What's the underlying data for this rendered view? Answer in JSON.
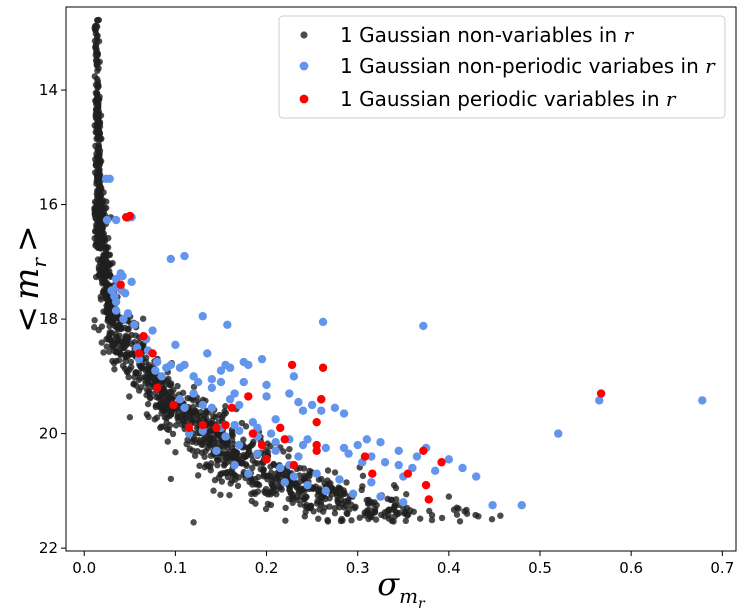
{
  "chart_data": {
    "type": "scatter",
    "xlabel": "σ",
    "xlabel_sub": "m",
    "xlabel_subsub": "r",
    "ylabel_parts": [
      "<",
      "m",
      "r",
      ">"
    ],
    "xlim": [
      -0.02,
      0.715
    ],
    "ylim": [
      22.05,
      12.55
    ],
    "y_inverted": true,
    "xticks": [
      0.0,
      0.1,
      0.2,
      0.3,
      0.4,
      0.5,
      0.6,
      0.7
    ],
    "xtick_labels": [
      "0.0",
      "0.1",
      "0.2",
      "0.3",
      "0.4",
      "0.5",
      "0.6",
      "0.7"
    ],
    "yticks": [
      14,
      16,
      18,
      20,
      22
    ],
    "ytick_labels": [
      "14",
      "16",
      "18",
      "20",
      "22"
    ],
    "grid": false,
    "legend_position": "top-right",
    "series": [
      {
        "name": "1 Gaussian non-variables in r",
        "name_text": "1 Gaussian non-variables in ",
        "name_italic": "r",
        "color": "#1f1f1f",
        "marker_alpha": 0.8,
        "marker_size": 3.2,
        "description": "dense locus ~1400 stars following <m_r> vs sigma relation",
        "locus": [
          [
            0.013,
            12.8
          ],
          [
            0.014,
            13.6
          ],
          [
            0.015,
            14.5
          ],
          [
            0.016,
            15.5
          ],
          [
            0.018,
            16.5
          ],
          [
            0.022,
            17.3
          ],
          [
            0.03,
            17.9
          ],
          [
            0.045,
            18.5
          ],
          [
            0.07,
            19.0
          ],
          [
            0.1,
            19.5
          ],
          [
            0.13,
            19.9
          ],
          [
            0.16,
            20.3
          ],
          [
            0.2,
            20.7
          ],
          [
            0.24,
            21.0
          ],
          [
            0.28,
            21.2
          ],
          [
            0.32,
            21.35
          ],
          [
            0.36,
            21.45
          ],
          [
            0.4,
            21.5
          ]
        ],
        "extra_points": [
          [
            0.12,
            21.55
          ],
          [
            0.42,
            21.4
          ],
          [
            0.4,
            21.1
          ],
          [
            0.35,
            21.3
          ],
          [
            0.34,
            20.9
          ]
        ]
      },
      {
        "name": "1 Gaussian non-periodic variabes in r",
        "name_text": "1 Gaussian non-periodic variabes in ",
        "name_italic": "r",
        "color": "#6495ed",
        "marker_size": 4.2,
        "points": [
          [
            0.024,
            15.55
          ],
          [
            0.028,
            15.55
          ],
          [
            0.025,
            16.27
          ],
          [
            0.035,
            16.27
          ],
          [
            0.048,
            16.23
          ],
          [
            0.052,
            16.22
          ],
          [
            0.095,
            16.95
          ],
          [
            0.11,
            16.9
          ],
          [
            0.04,
            17.2
          ],
          [
            0.042,
            17.25
          ],
          [
            0.035,
            17.3
          ],
          [
            0.052,
            17.35
          ],
          [
            0.035,
            17.45
          ],
          [
            0.041,
            17.5
          ],
          [
            0.03,
            17.5
          ],
          [
            0.045,
            17.55
          ],
          [
            0.033,
            17.6
          ],
          [
            0.035,
            17.7
          ],
          [
            0.048,
            17.9
          ],
          [
            0.055,
            18.1
          ],
          [
            0.035,
            17.85
          ],
          [
            0.043,
            18.0
          ],
          [
            0.13,
            17.95
          ],
          [
            0.157,
            18.1
          ],
          [
            0.262,
            18.05
          ],
          [
            0.372,
            18.12
          ],
          [
            0.075,
            18.2
          ],
          [
            0.068,
            18.35
          ],
          [
            0.1,
            18.45
          ],
          [
            0.058,
            18.5
          ],
          [
            0.07,
            18.55
          ],
          [
            0.06,
            18.7
          ],
          [
            0.08,
            18.75
          ],
          [
            0.095,
            18.8
          ],
          [
            0.09,
            18.85
          ],
          [
            0.105,
            18.85
          ],
          [
            0.11,
            18.8
          ],
          [
            0.078,
            18.9
          ],
          [
            0.085,
            19.0
          ],
          [
            0.12,
            19.0
          ],
          [
            0.125,
            19.1
          ],
          [
            0.14,
            19.05
          ],
          [
            0.15,
            18.9
          ],
          [
            0.16,
            18.85
          ],
          [
            0.18,
            18.8
          ],
          [
            0.155,
            18.8
          ],
          [
            0.175,
            18.75
          ],
          [
            0.195,
            18.7
          ],
          [
            0.135,
            18.6
          ],
          [
            0.15,
            19.1
          ],
          [
            0.14,
            19.2
          ],
          [
            0.165,
            19.3
          ],
          [
            0.12,
            19.3
          ],
          [
            0.105,
            19.4
          ],
          [
            0.16,
            19.4
          ],
          [
            0.13,
            19.5
          ],
          [
            0.11,
            19.55
          ],
          [
            0.14,
            19.55
          ],
          [
            0.17,
            19.5
          ],
          [
            0.2,
            19.35
          ],
          [
            0.225,
            19.3
          ],
          [
            0.235,
            19.45
          ],
          [
            0.25,
            19.5
          ],
          [
            0.26,
            19.6
          ],
          [
            0.24,
            19.6
          ],
          [
            0.285,
            19.65
          ],
          [
            0.21,
            19.75
          ],
          [
            0.185,
            19.8
          ],
          [
            0.165,
            19.85
          ],
          [
            0.15,
            19.9
          ],
          [
            0.13,
            19.95
          ],
          [
            0.115,
            20.0
          ],
          [
            0.155,
            20.05
          ],
          [
            0.17,
            19.95
          ],
          [
            0.19,
            20.05
          ],
          [
            0.205,
            20.0
          ],
          [
            0.225,
            20.1
          ],
          [
            0.24,
            20.2
          ],
          [
            0.265,
            20.25
          ],
          [
            0.245,
            20.1
          ],
          [
            0.285,
            20.25
          ],
          [
            0.3,
            20.2
          ],
          [
            0.31,
            20.1
          ],
          [
            0.325,
            20.15
          ],
          [
            0.29,
            20.35
          ],
          [
            0.305,
            20.5
          ],
          [
            0.33,
            20.5
          ],
          [
            0.345,
            20.55
          ],
          [
            0.36,
            20.6
          ],
          [
            0.385,
            20.65
          ],
          [
            0.365,
            20.4
          ],
          [
            0.375,
            20.25
          ],
          [
            0.4,
            20.45
          ],
          [
            0.415,
            20.6
          ],
          [
            0.43,
            20.75
          ],
          [
            0.35,
            20.75
          ],
          [
            0.315,
            20.85
          ],
          [
            0.28,
            20.8
          ],
          [
            0.255,
            20.7
          ],
          [
            0.225,
            20.55
          ],
          [
            0.2,
            20.45
          ],
          [
            0.215,
            20.6
          ],
          [
            0.23,
            20.75
          ],
          [
            0.245,
            20.9
          ],
          [
            0.265,
            21.0
          ],
          [
            0.295,
            21.05
          ],
          [
            0.325,
            21.1
          ],
          [
            0.35,
            21.2
          ],
          [
            0.22,
            20.85
          ],
          [
            0.18,
            20.7
          ],
          [
            0.165,
            20.55
          ],
          [
            0.145,
            20.3
          ],
          [
            0.17,
            20.2
          ],
          [
            0.19,
            20.35
          ],
          [
            0.21,
            20.3
          ],
          [
            0.26,
            19.4
          ],
          [
            0.275,
            19.55
          ],
          [
            0.2,
            19.15
          ],
          [
            0.175,
            19.1
          ],
          [
            0.23,
            19.0
          ],
          [
            0.52,
            20.0
          ],
          [
            0.448,
            21.25
          ],
          [
            0.48,
            21.25
          ],
          [
            0.565,
            19.42
          ],
          [
            0.678,
            19.42
          ],
          [
            0.19,
            19.9
          ],
          [
            0.21,
            20.15
          ],
          [
            0.235,
            20.4
          ],
          [
            0.315,
            20.4
          ],
          [
            0.345,
            20.3
          ]
        ]
      },
      {
        "name": "1 Gaussian periodic variables in r",
        "name_text": "1 Gaussian periodic variables in ",
        "name_italic": "r",
        "color": "#ff0000",
        "marker_size": 4.2,
        "points": [
          [
            0.046,
            16.22
          ],
          [
            0.05,
            16.2
          ],
          [
            0.04,
            17.4
          ],
          [
            0.065,
            18.3
          ],
          [
            0.075,
            18.6
          ],
          [
            0.06,
            18.6
          ],
          [
            0.08,
            19.2
          ],
          [
            0.098,
            19.5
          ],
          [
            0.115,
            19.9
          ],
          [
            0.13,
            19.85
          ],
          [
            0.145,
            19.9
          ],
          [
            0.162,
            19.55
          ],
          [
            0.155,
            19.85
          ],
          [
            0.18,
            19.35
          ],
          [
            0.185,
            20.0
          ],
          [
            0.195,
            20.2
          ],
          [
            0.2,
            20.45
          ],
          [
            0.215,
            19.9
          ],
          [
            0.22,
            20.1
          ],
          [
            0.228,
            18.8
          ],
          [
            0.23,
            20.55
          ],
          [
            0.255,
            20.3
          ],
          [
            0.26,
            19.4
          ],
          [
            0.255,
            19.8
          ],
          [
            0.262,
            18.85
          ],
          [
            0.255,
            20.2
          ],
          [
            0.308,
            20.4
          ],
          [
            0.316,
            20.7
          ],
          [
            0.355,
            20.7
          ],
          [
            0.372,
            20.3
          ],
          [
            0.375,
            20.9
          ],
          [
            0.378,
            21.15
          ],
          [
            0.392,
            20.5
          ],
          [
            0.567,
            19.3
          ]
        ]
      }
    ]
  }
}
